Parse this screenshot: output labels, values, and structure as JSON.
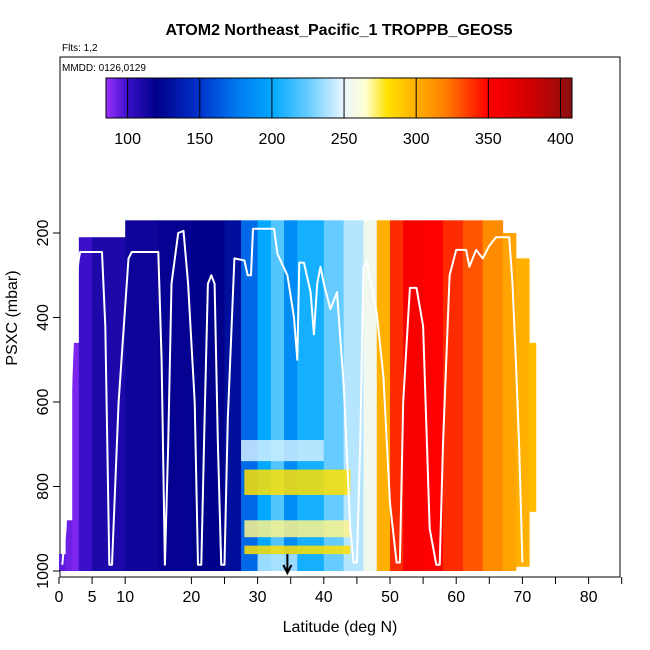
{
  "chart_data": {
    "type": "heatmap",
    "title": "ATOM2 Northeast_Pacific_1 TROPPB_GEOS5",
    "annotations": [
      "Flts: 1,2",
      "MMDD: 0126,0129"
    ],
    "xlabel": "Latitude (deg N)",
    "ylabel": "PSXC (mbar)",
    "xlim": [
      0,
      85
    ],
    "ylim": [
      1000,
      0
    ],
    "x_ticks": [
      0,
      5,
      10,
      20,
      30,
      40,
      50,
      60,
      70,
      80
    ],
    "y_ticks": [
      200,
      400,
      600,
      800,
      1000
    ],
    "colorbar": {
      "ticks": [
        100,
        150,
        200,
        250,
        300,
        350,
        400
      ],
      "range": [
        85,
        408
      ],
      "stops": [
        {
          "v": 85,
          "c": "#9b30ff"
        },
        {
          "v": 100,
          "c": "#3a10c8"
        },
        {
          "v": 120,
          "c": "#00008b"
        },
        {
          "v": 150,
          "c": "#0033cc"
        },
        {
          "v": 175,
          "c": "#0077ee"
        },
        {
          "v": 200,
          "c": "#00a8ff"
        },
        {
          "v": 225,
          "c": "#66ccff"
        },
        {
          "v": 250,
          "c": "#eaf6ff"
        },
        {
          "v": 265,
          "c": "#ffffd0"
        },
        {
          "v": 280,
          "c": "#ffe000"
        },
        {
          "v": 300,
          "c": "#ffb000"
        },
        {
          "v": 320,
          "c": "#ff8000"
        },
        {
          "v": 350,
          "c": "#ff0000"
        },
        {
          "v": 380,
          "c": "#d00000"
        },
        {
          "v": 408,
          "c": "#8b1010"
        }
      ]
    },
    "field": {
      "comment": "Tropopause pressure (mbar) along flight track, by latitude band; colored columns span pressure ranges",
      "columns": [
        {
          "lat": [
            0,
            1
          ],
          "p": [
            960,
            1000
          ],
          "value": 95
        },
        {
          "lat": [
            1,
            2
          ],
          "p": [
            880,
            1000
          ],
          "value": 92
        },
        {
          "lat": [
            2,
            3
          ],
          "p": [
            460,
            1000
          ],
          "value": 90
        },
        {
          "lat": [
            3,
            5
          ],
          "p": [
            210,
            1000
          ],
          "value": 100
        },
        {
          "lat": [
            5,
            10
          ],
          "p": [
            210,
            1000
          ],
          "value": 110
        },
        {
          "lat": [
            10,
            15
          ],
          "p": [
            170,
            1000
          ],
          "value": 115
        },
        {
          "lat": [
            15,
            20
          ],
          "p": [
            170,
            1000
          ],
          "value": 118
        },
        {
          "lat": [
            20,
            25
          ],
          "p": [
            170,
            1000
          ],
          "value": 120
        },
        {
          "lat": [
            25,
            27.5
          ],
          "p": [
            170,
            1000
          ],
          "value": 128
        },
        {
          "lat": [
            27.5,
            30
          ],
          "p": [
            170,
            1000
          ],
          "value": 170
        },
        {
          "lat": [
            30,
            32
          ],
          "p": [
            170,
            1000
          ],
          "value": 200
        },
        {
          "lat": [
            32,
            34
          ],
          "p": [
            170,
            1000
          ],
          "value": 220
        },
        {
          "lat": [
            34,
            36
          ],
          "p": [
            170,
            1000
          ],
          "value": 185
        },
        {
          "lat": [
            36,
            40
          ],
          "p": [
            170,
            1000
          ],
          "value": 205
        },
        {
          "lat": [
            40,
            43
          ],
          "p": [
            170,
            1000
          ],
          "value": 225
        },
        {
          "lat": [
            43,
            46
          ],
          "p": [
            170,
            1000
          ],
          "value": 240
        },
        {
          "lat": [
            46,
            48
          ],
          "p": [
            170,
            1000
          ],
          "value": 255
        },
        {
          "lat": [
            48,
            50
          ],
          "p": [
            170,
            1000
          ],
          "value": 300
        },
        {
          "lat": [
            50,
            52
          ],
          "p": [
            170,
            1000
          ],
          "value": 340
        },
        {
          "lat": [
            52,
            55
          ],
          "p": [
            170,
            1000
          ],
          "value": 355
        },
        {
          "lat": [
            55,
            58
          ],
          "p": [
            170,
            1000
          ],
          "value": 350
        },
        {
          "lat": [
            58,
            61
          ],
          "p": [
            170,
            1000
          ],
          "value": 340
        },
        {
          "lat": [
            61,
            64
          ],
          "p": [
            170,
            1000
          ],
          "value": 330
        },
        {
          "lat": [
            64,
            67
          ],
          "p": [
            170,
            1000
          ],
          "value": 315
        },
        {
          "lat": [
            67,
            69
          ],
          "p": [
            200,
            1000
          ],
          "value": 305
        },
        {
          "lat": [
            69,
            71
          ],
          "p": [
            260,
            990
          ],
          "value": 300
        },
        {
          "lat": [
            71,
            72
          ],
          "p": [
            460,
            860
          ],
          "value": 295
        }
      ],
      "bands": [
        {
          "lat": [
            27.5,
            40
          ],
          "p": [
            690,
            740
          ],
          "value": 245
        },
        {
          "lat": [
            28,
            44
          ],
          "p": [
            760,
            820
          ],
          "value": 280
        },
        {
          "lat": [
            28,
            44
          ],
          "p": [
            880,
            920
          ],
          "value": 270
        },
        {
          "lat": [
            28,
            44
          ],
          "p": [
            940,
            960
          ],
          "value": 280
        },
        {
          "lat": [
            30,
            36
          ],
          "p": [
            960,
            1000
          ],
          "value": 240
        }
      ]
    },
    "flight_track": [
      [
        0.5,
        985
      ],
      [
        1,
        900
      ],
      [
        1.5,
        700
      ],
      [
        2,
        500
      ],
      [
        2.5,
        320
      ],
      [
        3,
        260
      ],
      [
        3.2,
        245
      ],
      [
        5,
        245
      ],
      [
        6.5,
        245
      ],
      [
        7,
        420
      ],
      [
        7.3,
        700
      ],
      [
        7.6,
        985
      ],
      [
        8,
        985
      ],
      [
        9,
        600
      ],
      [
        10.5,
        260
      ],
      [
        11,
        245
      ],
      [
        15,
        245
      ],
      [
        15.5,
        500
      ],
      [
        16,
        985
      ],
      [
        16.5,
        700
      ],
      [
        17,
        320
      ],
      [
        18,
        200
      ],
      [
        18.8,
        195
      ],
      [
        19.5,
        320
      ],
      [
        20.5,
        600
      ],
      [
        21,
        985
      ],
      [
        21.5,
        985
      ],
      [
        22,
        640
      ],
      [
        22.5,
        320
      ],
      [
        23,
        300
      ],
      [
        23.5,
        320
      ],
      [
        24,
        700
      ],
      [
        24.5,
        985
      ],
      [
        25,
        985
      ],
      [
        25.5,
        640
      ],
      [
        26.5,
        260
      ],
      [
        28,
        265
      ],
      [
        28.5,
        300
      ],
      [
        29,
        300
      ],
      [
        29.3,
        190
      ],
      [
        32.5,
        190
      ],
      [
        33,
        250
      ],
      [
        34.5,
        300
      ],
      [
        35.5,
        400
      ],
      [
        36,
        500
      ],
      [
        36.3,
        270
      ],
      [
        37,
        270
      ],
      [
        38,
        340
      ],
      [
        38.5,
        440
      ],
      [
        39,
        320
      ],
      [
        39.5,
        280
      ],
      [
        40,
        320
      ],
      [
        41,
        380
      ],
      [
        42,
        340
      ],
      [
        43,
        560
      ],
      [
        44,
        900
      ],
      [
        44.5,
        980
      ],
      [
        45,
        980
      ],
      [
        45.5,
        700
      ],
      [
        46,
        280
      ],
      [
        46.5,
        270
      ],
      [
        48,
        390
      ],
      [
        49,
        540
      ],
      [
        50,
        840
      ],
      [
        51,
        980
      ],
      [
        51.5,
        980
      ],
      [
        52,
        600
      ],
      [
        53,
        330
      ],
      [
        54,
        330
      ],
      [
        55,
        420
      ],
      [
        56,
        900
      ],
      [
        57,
        985
      ],
      [
        57.5,
        985
      ],
      [
        58,
        700
      ],
      [
        59,
        300
      ],
      [
        60,
        240
      ],
      [
        61.5,
        240
      ],
      [
        62,
        280
      ],
      [
        63,
        240
      ],
      [
        64,
        260
      ],
      [
        65,
        230
      ],
      [
        66,
        210
      ],
      [
        68,
        210
      ],
      [
        68.5,
        320
      ],
      [
        69,
        500
      ],
      [
        69.5,
        700
      ],
      [
        70,
        980
      ]
    ],
    "arrow": {
      "lat": 34.5,
      "p_from": 960,
      "p_to": 1000
    },
    "grid": false,
    "legend": "top colorbar"
  }
}
